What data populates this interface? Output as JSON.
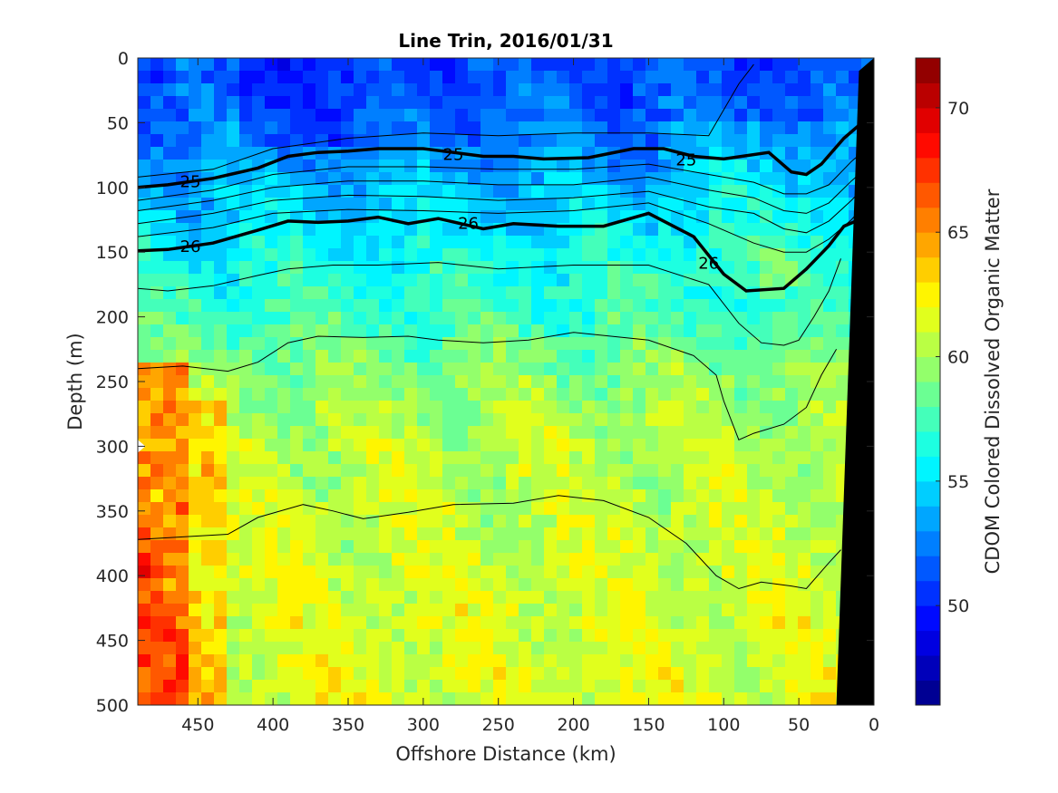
{
  "chart_data": {
    "type": "heatmap",
    "subtype": "filled-contour section",
    "title": "Line Trin, 2016/01/31",
    "xlabel": "Offshore Distance (km)",
    "ylabel": "Depth (m)",
    "colorbar_label": "CDOM Colored Dissolved Organic Matter",
    "xlim": [
      490,
      0
    ],
    "x_reversed": true,
    "ylim": [
      500,
      0
    ],
    "y_reversed": true,
    "x_ticks": [
      "450",
      "400",
      "350",
      "300",
      "250",
      "200",
      "150",
      "100",
      "50",
      "0"
    ],
    "y_ticks": [
      "0",
      "50",
      "100",
      "150",
      "200",
      "250",
      "300",
      "350",
      "400",
      "450",
      "500"
    ],
    "colorbar_range": [
      46,
      72
    ],
    "colorbar_ticks": [
      "50",
      "55",
      "60",
      "65",
      "70"
    ],
    "colormap": "jet",
    "colormap_stops": [
      "#00007f",
      "#0000ff",
      "#007fff",
      "#00ffff",
      "#7fff7f",
      "#ffff00",
      "#ff7f00",
      "#ff0000",
      "#7f0000"
    ],
    "value_bands_by_depth": [
      {
        "depth": 0,
        "value": 51
      },
      {
        "depth": 50,
        "value": 52
      },
      {
        "depth": 100,
        "value": 54
      },
      {
        "depth": 150,
        "value": 56
      },
      {
        "depth": 200,
        "value": 57.5
      },
      {
        "depth": 250,
        "value": 59.5
      },
      {
        "depth": 300,
        "value": 60.5
      },
      {
        "depth": 400,
        "value": 61
      },
      {
        "depth": 500,
        "value": 61.5
      }
    ],
    "density_contours_labeled": [
      {
        "label": "25",
        "points": [
          [
            490,
            100
          ],
          [
            470,
            98
          ],
          [
            440,
            93
          ],
          [
            410,
            85
          ],
          [
            390,
            76
          ],
          [
            370,
            73
          ],
          [
            350,
            72
          ],
          [
            330,
            70
          ],
          [
            300,
            70
          ],
          [
            280,
            73
          ],
          [
            260,
            76
          ],
          [
            240,
            76
          ],
          [
            220,
            78
          ],
          [
            190,
            77
          ],
          [
            160,
            70
          ],
          [
            140,
            70
          ],
          [
            120,
            76
          ],
          [
            100,
            78
          ],
          [
            70,
            73
          ],
          [
            55,
            88
          ],
          [
            45,
            90
          ],
          [
            35,
            82
          ],
          [
            20,
            62
          ],
          [
            10,
            52
          ]
        ]
      },
      {
        "label": "26",
        "points": [
          [
            490,
            149
          ],
          [
            470,
            148
          ],
          [
            440,
            143
          ],
          [
            410,
            133
          ],
          [
            390,
            126
          ],
          [
            370,
            127
          ],
          [
            350,
            126
          ],
          [
            330,
            123
          ],
          [
            310,
            128
          ],
          [
            290,
            124
          ],
          [
            260,
            132
          ],
          [
            240,
            128
          ],
          [
            210,
            130
          ],
          [
            180,
            130
          ],
          [
            150,
            120
          ],
          [
            120,
            138
          ],
          [
            100,
            167
          ],
          [
            85,
            180
          ],
          [
            60,
            178
          ],
          [
            45,
            163
          ],
          [
            30,
            145
          ],
          [
            20,
            130
          ],
          [
            10,
            125
          ]
        ]
      }
    ],
    "density_contours_unlabeled": [
      [
        [
          490,
          92
        ],
        [
          440,
          86
        ],
        [
          400,
          70
        ],
        [
          350,
          62
        ],
        [
          300,
          58
        ],
        [
          250,
          60
        ],
        [
          200,
          58
        ],
        [
          150,
          58
        ],
        [
          110,
          60
        ],
        [
          100,
          40
        ],
        [
          90,
          20
        ],
        [
          80,
          5
        ]
      ],
      [
        [
          490,
          110
        ],
        [
          440,
          102
        ],
        [
          400,
          90
        ],
        [
          350,
          84
        ],
        [
          300,
          84
        ],
        [
          250,
          86
        ],
        [
          200,
          86
        ],
        [
          150,
          82
        ],
        [
          110,
          90
        ],
        [
          80,
          96
        ],
        [
          60,
          105
        ],
        [
          45,
          105
        ],
        [
          30,
          98
        ],
        [
          15,
          80
        ],
        [
          5,
          70
        ]
      ],
      [
        [
          490,
          118
        ],
        [
          440,
          110
        ],
        [
          400,
          100
        ],
        [
          350,
          95
        ],
        [
          300,
          95
        ],
        [
          250,
          98
        ],
        [
          200,
          98
        ],
        [
          150,
          92
        ],
        [
          110,
          102
        ],
        [
          80,
          108
        ],
        [
          60,
          118
        ],
        [
          45,
          120
        ],
        [
          30,
          112
        ],
        [
          15,
          95
        ],
        [
          5,
          85
        ]
      ],
      [
        [
          490,
          128
        ],
        [
          440,
          120
        ],
        [
          400,
          110
        ],
        [
          350,
          106
        ],
        [
          300,
          107
        ],
        [
          250,
          110
        ],
        [
          200,
          108
        ],
        [
          150,
          103
        ],
        [
          110,
          115
        ],
        [
          80,
          120
        ],
        [
          60,
          132
        ],
        [
          45,
          135
        ],
        [
          30,
          126
        ],
        [
          15,
          110
        ],
        [
          5,
          98
        ]
      ],
      [
        [
          490,
          138
        ],
        [
          440,
          131
        ],
        [
          400,
          120
        ],
        [
          350,
          117
        ],
        [
          300,
          118
        ],
        [
          250,
          120
        ],
        [
          200,
          118
        ],
        [
          150,
          112
        ],
        [
          110,
          128
        ],
        [
          80,
          143
        ],
        [
          60,
          150
        ],
        [
          45,
          150
        ],
        [
          30,
          140
        ],
        [
          15,
          125
        ],
        [
          5,
          112
        ]
      ],
      [
        [
          490,
          178
        ],
        [
          470,
          180
        ],
        [
          440,
          176
        ],
        [
          410,
          168
        ],
        [
          390,
          163
        ],
        [
          360,
          160
        ],
        [
          330,
          160
        ],
        [
          290,
          158
        ],
        [
          250,
          163
        ],
        [
          200,
          160
        ],
        [
          150,
          160
        ],
        [
          110,
          175
        ],
        [
          90,
          205
        ],
        [
          75,
          220
        ],
        [
          60,
          222
        ],
        [
          50,
          218
        ],
        [
          40,
          200
        ],
        [
          30,
          180
        ],
        [
          22,
          155
        ]
      ],
      [
        [
          490,
          240
        ],
        [
          460,
          238
        ],
        [
          430,
          242
        ],
        [
          410,
          235
        ],
        [
          390,
          220
        ],
        [
          370,
          215
        ],
        [
          340,
          216
        ],
        [
          310,
          215
        ],
        [
          290,
          218
        ],
        [
          260,
          220
        ],
        [
          230,
          218
        ],
        [
          200,
          212
        ],
        [
          150,
          218
        ],
        [
          120,
          230
        ],
        [
          105,
          245
        ],
        [
          100,
          265
        ],
        [
          90,
          295
        ],
        [
          80,
          290
        ],
        [
          60,
          283
        ],
        [
          45,
          270
        ],
        [
          35,
          245
        ],
        [
          25,
          225
        ]
      ],
      [
        [
          490,
          372
        ],
        [
          460,
          370
        ],
        [
          430,
          368
        ],
        [
          410,
          355
        ],
        [
          380,
          345
        ],
        [
          360,
          350
        ],
        [
          340,
          356
        ],
        [
          310,
          351
        ],
        [
          280,
          345
        ],
        [
          240,
          344
        ],
        [
          210,
          338
        ],
        [
          180,
          342
        ],
        [
          150,
          355
        ],
        [
          125,
          375
        ],
        [
          105,
          400
        ],
        [
          90,
          410
        ],
        [
          75,
          405
        ],
        [
          55,
          408
        ],
        [
          45,
          410
        ],
        [
          30,
          390
        ],
        [
          22,
          380
        ]
      ]
    ],
    "land_mask": [
      [
        25,
        500
      ],
      [
        0,
        500
      ],
      [
        0,
        0
      ],
      [
        10,
        10
      ]
    ],
    "missing_data": [
      [
        490,
        295
      ],
      [
        485,
        300
      ],
      [
        490,
        305
      ]
    ]
  }
}
